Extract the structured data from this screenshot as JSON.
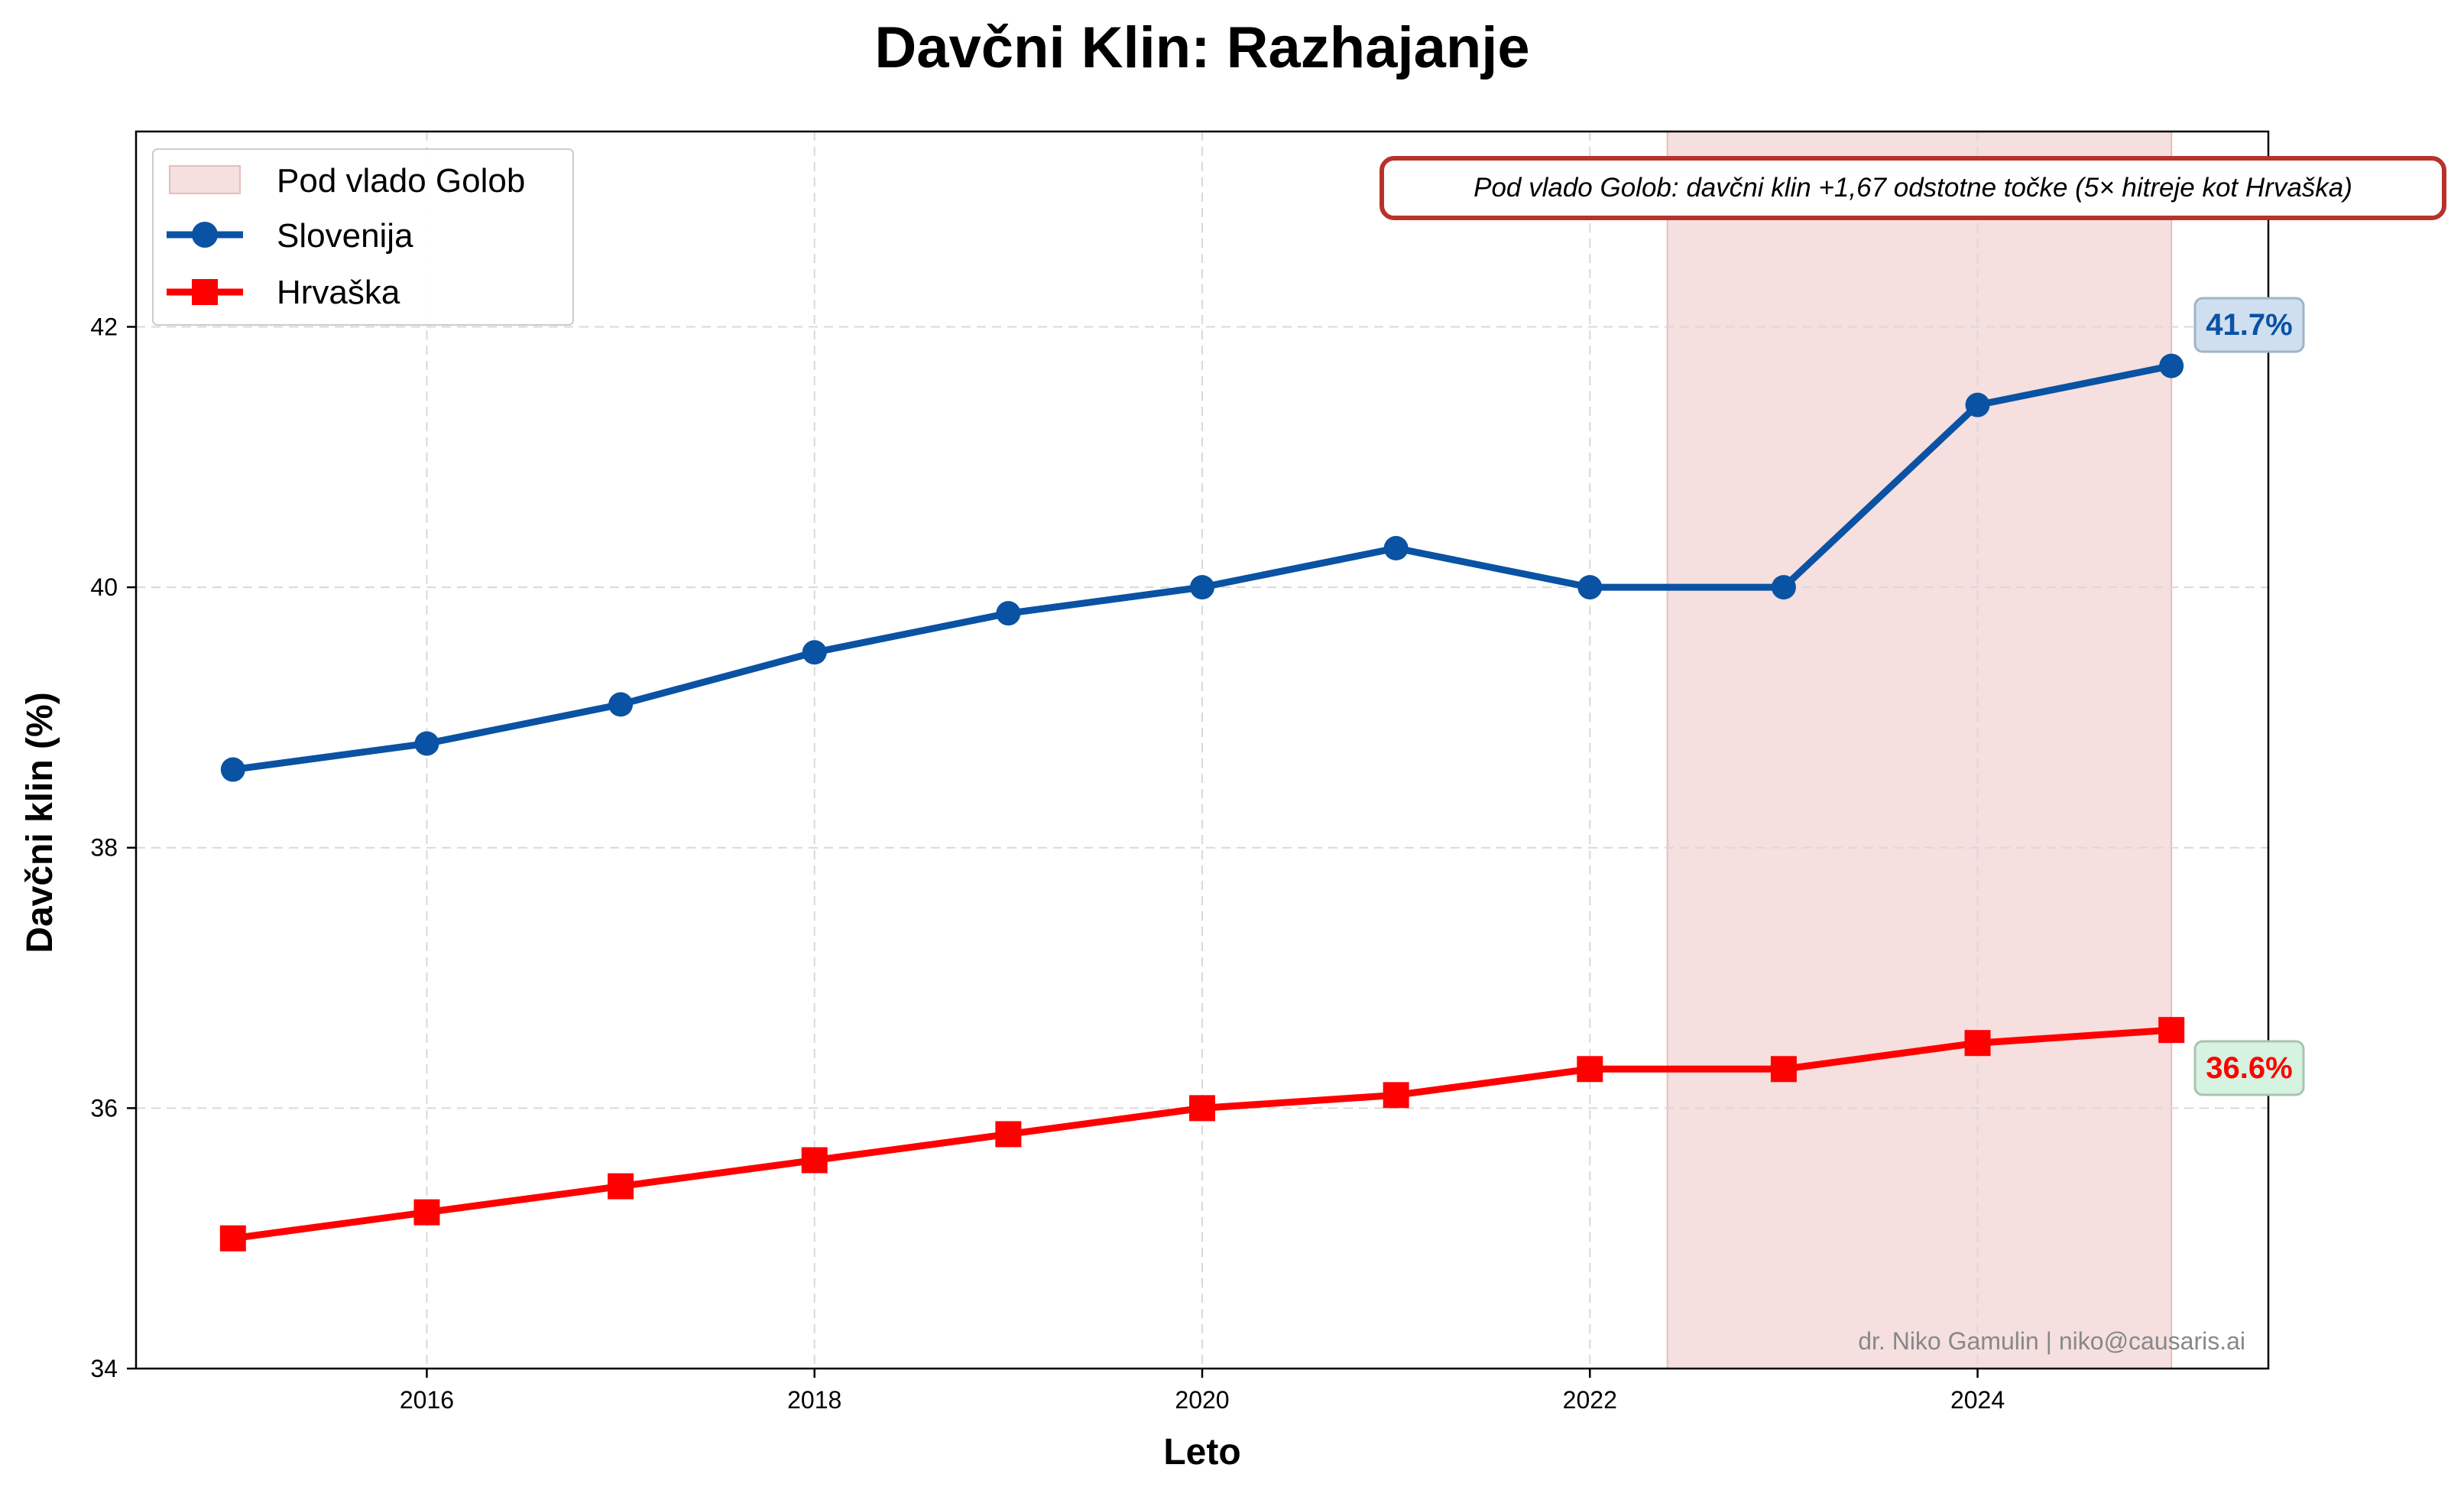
{
  "chart_data": {
    "type": "line",
    "title": "Davčni Klin: Razhajanje",
    "xlabel": "Leto",
    "ylabel": "Davčni klin (%)",
    "xlim": [
      2014.5,
      2025.5
    ],
    "ylim": [
      34,
      43.5
    ],
    "x_ticks": [
      2016,
      2018,
      2020,
      2022,
      2024
    ],
    "y_ticks": [
      34,
      36,
      38,
      40,
      42
    ],
    "grid": true,
    "legend_position": "top-left",
    "x": [
      2015,
      2016,
      2017,
      2018,
      2019,
      2020,
      2021,
      2022,
      2023,
      2024,
      2025
    ],
    "series": [
      {
        "name": "Slovenija",
        "color": "#0a52a3",
        "marker": "circle",
        "values": [
          38.6,
          38.8,
          39.1,
          39.5,
          39.8,
          40.0,
          40.3,
          40.0,
          40.0,
          41.4,
          41.7
        ]
      },
      {
        "name": "Hrvaška",
        "color": "#ff0000",
        "marker": "square",
        "values": [
          35.0,
          35.2,
          35.4,
          35.6,
          35.8,
          36.0,
          36.1,
          36.3,
          36.3,
          36.5,
          36.6
        ]
      }
    ],
    "shaded_region": {
      "label": "Pod vlado Golob",
      "x_start": 2022.4,
      "x_end": 2025.0,
      "color": "#f5dcdc"
    },
    "annotation": "Pod vlado Golob: davčni klin +1,67 odstotne točke (5× hitreje kot Hrvaška)",
    "end_labels": [
      {
        "series": "Slovenija",
        "text": "41.7%",
        "color": "#0a52a3",
        "box_fill": "#cfdff0"
      },
      {
        "series": "Hrvaška",
        "text": "36.6%",
        "color": "#ff0000",
        "box_fill": "#d6f2e0"
      }
    ],
    "credit": "dr. Niko Gamulin | niko@causaris.ai"
  }
}
